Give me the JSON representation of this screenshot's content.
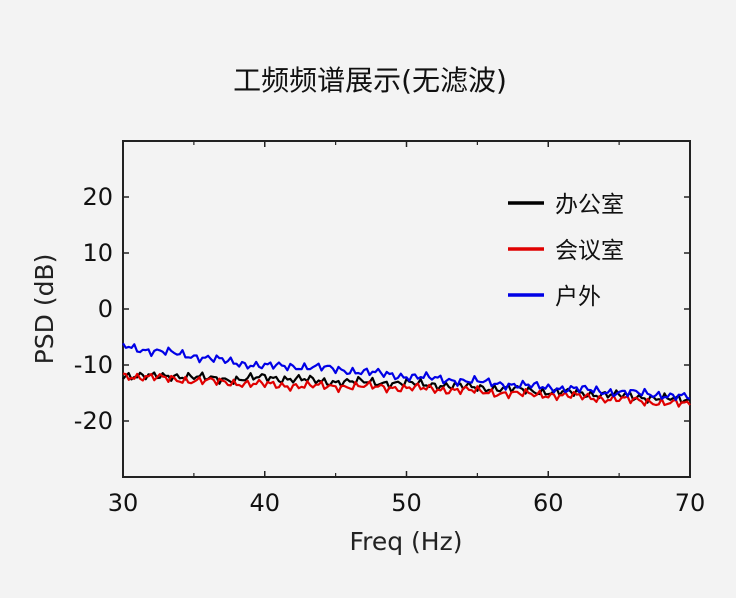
{
  "chart_data": {
    "type": "line",
    "title": "工频频谱展示(无滤波)",
    "xlabel": "Freq (Hz)",
    "ylabel": "PSD (dB)",
    "xlim": [
      30,
      70
    ],
    "ylim": [
      -30,
      30
    ],
    "xticks": [
      30,
      40,
      50,
      60,
      70
    ],
    "yticks": [
      20,
      10,
      0,
      -10,
      -20
    ],
    "grid": false,
    "legend_position": "top-right",
    "x": [
      30,
      32,
      34,
      36,
      38,
      40,
      42,
      44,
      46,
      48,
      50,
      52,
      54,
      56,
      58,
      60,
      62,
      64,
      66,
      68,
      70
    ],
    "series": [
      {
        "name": "办公室",
        "color": "#000000",
        "values": [
          -11.8,
          -12.1,
          -11.9,
          -12.4,
          -12.6,
          -12.2,
          -12.5,
          -12.9,
          -13.0,
          -13.1,
          -13.3,
          -13.5,
          -13.9,
          -14.1,
          -14.4,
          -14.8,
          -15.0,
          -15.3,
          -15.6,
          -16.0,
          -16.3
        ]
      },
      {
        "name": "会议室",
        "color": "#e00000",
        "values": [
          -11.9,
          -12.2,
          -12.6,
          -12.9,
          -13.2,
          -13.5,
          -13.7,
          -13.8,
          -13.8,
          -13.9,
          -14.1,
          -14.3,
          -14.5,
          -14.9,
          -15.2,
          -15.3,
          -15.6,
          -16.0,
          -16.3,
          -16.7,
          -17.1
        ]
      },
      {
        "name": "户外",
        "color": "#0000e6",
        "values": [
          -6.5,
          -7.5,
          -8.0,
          -8.8,
          -9.6,
          -10.2,
          -10.2,
          -10.5,
          -11.0,
          -11.5,
          -12.0,
          -12.4,
          -12.8,
          -13.2,
          -13.6,
          -14.0,
          -14.3,
          -14.7,
          -15.0,
          -15.3,
          -15.8
        ]
      }
    ]
  }
}
